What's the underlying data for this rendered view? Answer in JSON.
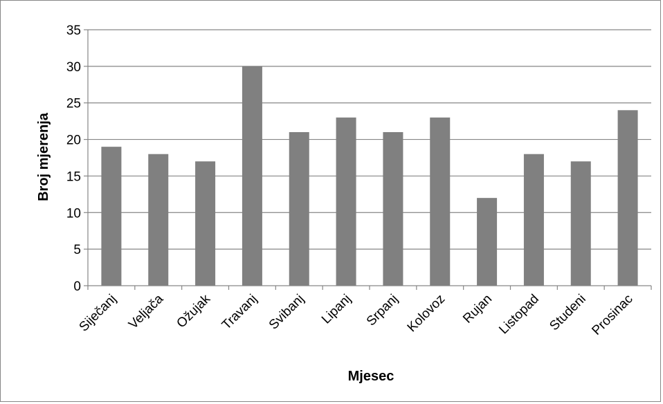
{
  "chart_data": {
    "type": "bar",
    "title": "",
    "xlabel": "Mjesec",
    "ylabel": "Broj mjerenja",
    "categories": [
      "Siječanj",
      "Veljača",
      "Ožujak",
      "Travanj",
      "Svibanj",
      "Lipanj",
      "Srpanj",
      "Kolovoz",
      "Rujan",
      "Listopad",
      "Studeni",
      "Prosinac"
    ],
    "values": [
      19,
      18,
      17,
      30,
      21,
      23,
      21,
      23,
      12,
      18,
      17,
      24
    ],
    "ylim": [
      0,
      35
    ],
    "yticks": [
      0,
      5,
      10,
      15,
      20,
      25,
      30,
      35
    ],
    "grid": true,
    "legend": "none",
    "colors": {
      "bar": "#808080",
      "grid": "#868686",
      "axis": "#868686"
    }
  }
}
